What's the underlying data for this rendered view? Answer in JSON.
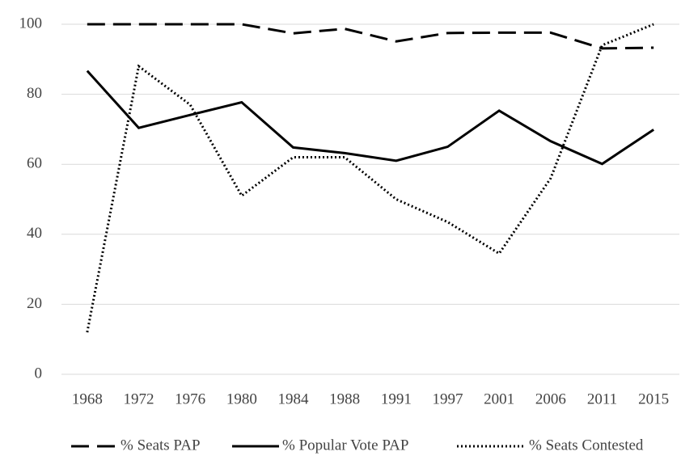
{
  "chart_data": {
    "type": "line",
    "categories": [
      "1968",
      "1972",
      "1976",
      "1980",
      "1984",
      "1988",
      "1991",
      "1997",
      "2001",
      "2006",
      "2011",
      "2015"
    ],
    "series": [
      {
        "name": "% Seats PAP",
        "color": "#000000",
        "dash": "dashed",
        "values": [
          100,
          100,
          100,
          100,
          97.4,
          98.7,
          95.1,
          97.5,
          97.6,
          97.6,
          93.1,
          93.3
        ]
      },
      {
        "name": "% Popular Vote PAP",
        "color": "#000000",
        "dash": "solid",
        "values": [
          86.7,
          70.4,
          74.1,
          77.7,
          64.8,
          63.2,
          61.0,
          65.0,
          75.3,
          66.6,
          60.1,
          69.9
        ]
      },
      {
        "name": "% Seats Contested",
        "color": "#000000",
        "dash": "dotted",
        "values": [
          12,
          88,
          77,
          51,
          62,
          62,
          50,
          43.5,
          34.5,
          56,
          94,
          100
        ]
      }
    ],
    "ylim": [
      0,
      100
    ],
    "yticks": [
      0,
      20,
      40,
      60,
      80,
      100
    ],
    "grid": true,
    "legend": "bottom"
  }
}
